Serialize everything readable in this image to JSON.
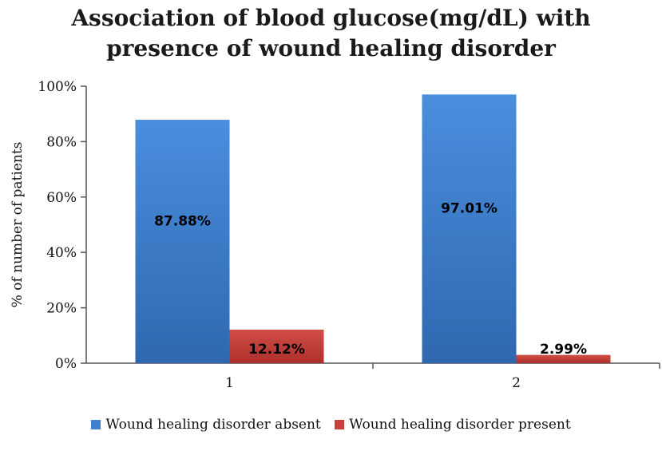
{
  "chart_data": {
    "type": "bar",
    "title": "Association of blood glucose(mg/dL) with\npresence of wound healing disorder",
    "title_lines": [
      "Association of blood glucose(mg/dL) with",
      "presence of wound healing disorder"
    ],
    "xlabel": "",
    "ylabel": "% of number of patients",
    "categories": [
      "1",
      "2"
    ],
    "ylim": [
      0,
      100
    ],
    "yticks": [
      0,
      20,
      40,
      60,
      80,
      100
    ],
    "ytick_labels": [
      "0%",
      "20%",
      "40%",
      "60%",
      "80%",
      "100%"
    ],
    "legend_position": "bottom",
    "grid": false,
    "series": [
      {
        "name": "Wound healing disorder absent",
        "color": "#3f7fd0",
        "values": [
          87.88,
          97.01
        ],
        "labels": [
          "87.88%",
          "97.01%"
        ]
      },
      {
        "name": "Wound healing disorder present",
        "color": "#c8413c",
        "values": [
          12.12,
          2.99
        ],
        "labels": [
          "12.12%",
          "2.99%"
        ]
      }
    ]
  }
}
